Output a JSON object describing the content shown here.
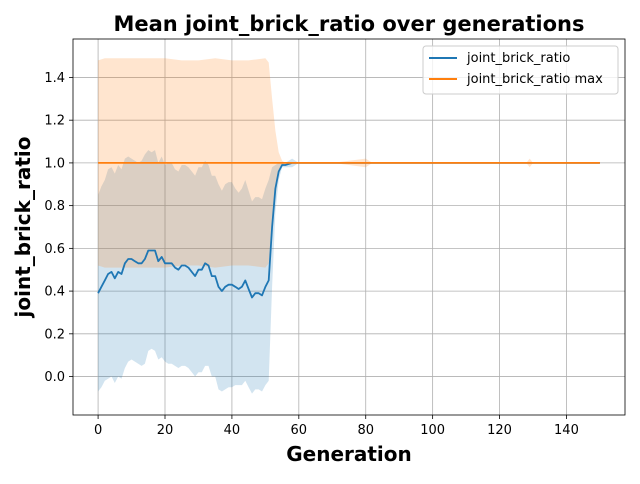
{
  "chart_data": {
    "type": "line",
    "title": "Mean joint_brick_ratio over generations",
    "xlabel": "Generation",
    "ylabel": "joint_brick_ratio",
    "xlim": [
      -7.5,
      157.5
    ],
    "ylim": [
      -0.18,
      1.58
    ],
    "xticks": [
      "0",
      "20",
      "40",
      "60",
      "80",
      "100",
      "120",
      "140"
    ],
    "yticks": [
      "0.0",
      "0.2",
      "0.4",
      "0.6",
      "0.8",
      "1.0",
      "1.2",
      "1.4"
    ],
    "grid": true,
    "legend_position": "top-right",
    "colors": {
      "mean": "#1f77b4",
      "max": "#ff7f0e"
    },
    "series": [
      {
        "name": "joint_brick_ratio",
        "x": [
          0,
          1,
          2,
          3,
          4,
          5,
          6,
          7,
          8,
          9,
          10,
          11,
          12,
          13,
          14,
          15,
          16,
          17,
          18,
          19,
          20,
          21,
          22,
          23,
          24,
          25,
          26,
          27,
          28,
          29,
          30,
          31,
          32,
          33,
          34,
          35,
          36,
          37,
          38,
          39,
          40,
          41,
          42,
          43,
          44,
          45,
          46,
          47,
          48,
          49,
          50,
          51,
          52,
          53,
          54,
          55,
          56,
          58,
          60,
          62,
          64,
          66,
          68,
          70,
          75,
          80,
          85,
          90,
          95,
          100,
          110,
          120,
          130,
          140,
          150
        ],
        "values": [
          0.39,
          0.42,
          0.45,
          0.48,
          0.49,
          0.46,
          0.49,
          0.48,
          0.53,
          0.55,
          0.55,
          0.54,
          0.53,
          0.53,
          0.55,
          0.59,
          0.59,
          0.59,
          0.54,
          0.56,
          0.53,
          0.53,
          0.53,
          0.51,
          0.5,
          0.52,
          0.52,
          0.51,
          0.49,
          0.47,
          0.5,
          0.5,
          0.53,
          0.52,
          0.47,
          0.47,
          0.42,
          0.4,
          0.42,
          0.43,
          0.43,
          0.42,
          0.41,
          0.42,
          0.45,
          0.41,
          0.37,
          0.39,
          0.39,
          0.38,
          0.42,
          0.45,
          0.7,
          0.88,
          0.96,
          0.99,
          0.99,
          1.0,
          1.0,
          1.0,
          1.0,
          1.0,
          1.0,
          1.0,
          1.0,
          1.0,
          1.0,
          1.0,
          1.0,
          1.0,
          1.0,
          1.0,
          1.0,
          1.0,
          1.0
        ],
        "std_upper": [
          0.85,
          0.89,
          0.92,
          0.97,
          0.98,
          0.95,
          0.99,
          0.97,
          1.02,
          1.03,
          1.02,
          1.01,
          1.0,
          1.01,
          1.04,
          1.06,
          1.05,
          1.06,
          1.0,
          1.03,
          0.99,
          1.0,
          1.0,
          0.97,
          0.96,
          0.99,
          0.99,
          0.98,
          0.96,
          0.94,
          0.98,
          0.98,
          1.01,
          0.99,
          0.94,
          0.94,
          0.9,
          0.87,
          0.9,
          0.91,
          0.91,
          0.88,
          0.86,
          0.88,
          0.92,
          0.87,
          0.82,
          0.84,
          0.84,
          0.83,
          0.88,
          0.92,
          0.98,
          0.99,
          1.0,
          1.0,
          1.0,
          1.02,
          1.0,
          1.0,
          1.0,
          1.0,
          1.0,
          1.0,
          1.0,
          1.0,
          1.0,
          1.0,
          1.0,
          1.0,
          1.0,
          1.0,
          1.0,
          1.0,
          1.0
        ],
        "std_lower": [
          -0.07,
          -0.05,
          -0.02,
          -0.01,
          0.0,
          -0.03,
          0.0,
          -0.01,
          0.04,
          0.07,
          0.08,
          0.07,
          0.06,
          0.05,
          0.06,
          0.12,
          0.13,
          0.12,
          0.08,
          0.09,
          0.07,
          0.06,
          0.06,
          0.05,
          0.04,
          0.05,
          0.05,
          0.04,
          0.02,
          0.0,
          0.02,
          0.02,
          0.05,
          0.05,
          0.0,
          0.0,
          -0.06,
          -0.07,
          -0.06,
          -0.05,
          -0.05,
          -0.04,
          -0.04,
          -0.04,
          -0.02,
          -0.05,
          -0.08,
          -0.06,
          -0.06,
          -0.07,
          -0.04,
          -0.02,
          0.42,
          0.77,
          0.92,
          0.98,
          0.98,
          0.98,
          1.0,
          1.0,
          1.0,
          1.0,
          1.0,
          1.0,
          1.0,
          1.0,
          1.0,
          1.0,
          1.0,
          1.0,
          1.0,
          1.0,
          1.0,
          1.0,
          1.0
        ]
      },
      {
        "name": "joint_brick_ratio max",
        "x": [
          0,
          150
        ],
        "values": [
          1.0,
          1.0
        ],
        "band_x": [
          0,
          2,
          5,
          10,
          15,
          20,
          25,
          30,
          35,
          40,
          45,
          50,
          51,
          52,
          53,
          54,
          55,
          56,
          58,
          60,
          62,
          64,
          66,
          68,
          70,
          75,
          80,
          82,
          84,
          90,
          100,
          110,
          120,
          122,
          124,
          128,
          129,
          130,
          140,
          150
        ],
        "band_upper": [
          1.48,
          1.49,
          1.49,
          1.49,
          1.49,
          1.49,
          1.48,
          1.48,
          1.49,
          1.48,
          1.48,
          1.49,
          1.47,
          1.3,
          1.15,
          1.05,
          1.01,
          1.0,
          1.0,
          1.0,
          1.0,
          1.0,
          1.0,
          1.0,
          1.0,
          1.01,
          1.02,
          1.0,
          1.0,
          1.0,
          1.0,
          1.0,
          1.0,
          1.0,
          1.0,
          1.0,
          1.02,
          1.0,
          1.0,
          1.0
        ],
        "band_lower": [
          0.52,
          0.51,
          0.51,
          0.51,
          0.51,
          0.51,
          0.52,
          0.52,
          0.51,
          0.52,
          0.52,
          0.51,
          0.53,
          0.7,
          0.85,
          0.95,
          0.99,
          1.0,
          1.0,
          1.0,
          1.0,
          1.0,
          1.0,
          1.0,
          1.0,
          0.99,
          0.98,
          1.0,
          1.0,
          1.0,
          1.0,
          1.0,
          1.0,
          1.0,
          1.0,
          1.0,
          0.98,
          1.0,
          1.0,
          1.0
        ]
      }
    ]
  }
}
